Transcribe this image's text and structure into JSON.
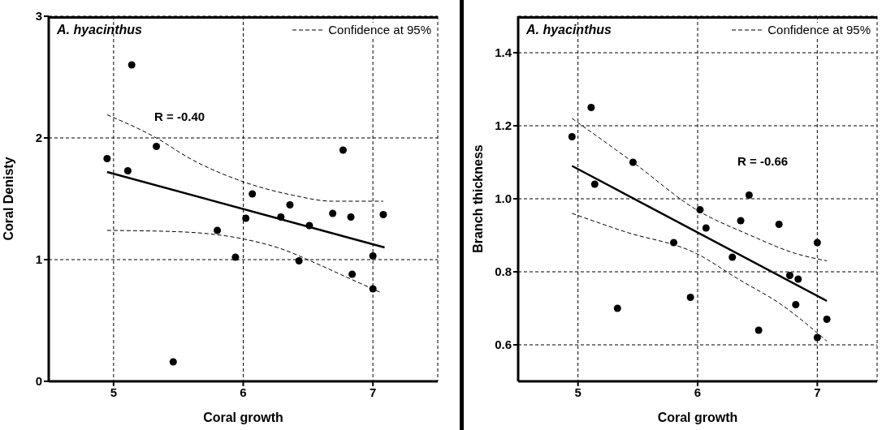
{
  "chart_data": [
    {
      "type": "scatter",
      "title": "A. hyacinthus",
      "xlabel": "Coral growth",
      "ylabel": "Coral Denisty",
      "xlim": [
        4.5,
        7.5
      ],
      "xticks": [
        5,
        6,
        7
      ],
      "ylim": [
        0,
        3
      ],
      "yticks": [
        0,
        1,
        2,
        3
      ],
      "grid": true,
      "legend": "top right",
      "annotations": [
        "R = -0.40"
      ],
      "series": [
        {
          "marker": "circle",
          "color": "#000000",
          "x": [
            4.95,
            5.11,
            5.14,
            5.33,
            5.46,
            5.8,
            5.94,
            6.02,
            6.07,
            6.29,
            6.36,
            6.43,
            6.51,
            6.69,
            6.77,
            6.83,
            6.84,
            7.0,
            7.0,
            7.08
          ],
          "values": [
            1.83,
            1.73,
            2.6,
            1.93,
            0.16,
            1.24,
            1.02,
            1.34,
            1.54,
            1.35,
            1.45,
            0.99,
            1.28,
            1.38,
            1.9,
            1.35,
            0.88,
            1.03,
            0.76,
            1.37
          ]
        },
        {
          "type": "line",
          "color": "#000000",
          "line_style": "solid",
          "x": [
            4.95,
            7.09
          ],
          "values": [
            1.72,
            1.1
          ]
        },
        {
          "type": "line",
          "name": "Confidence at 95%",
          "color": "#000000",
          "line_style": "dashed",
          "x": [
            4.95,
            5.33,
            5.59,
            6.0,
            6.38,
            6.69,
            7.08
          ],
          "values": [
            2.19,
            2.0,
            1.83,
            1.64,
            1.53,
            1.48,
            1.48
          ]
        },
        {
          "type": "line",
          "color": "#000000",
          "line_style": "dashed",
          "x": [
            4.95,
            5.48,
            6.0,
            6.29,
            6.56,
            6.83,
            7.06
          ],
          "values": [
            1.24,
            1.23,
            1.17,
            1.09,
            0.97,
            0.84,
            0.73
          ]
        }
      ]
    },
    {
      "type": "scatter",
      "title": "A. hyacinthus",
      "xlabel": "Coral growth",
      "ylabel": "Branch thickness",
      "xlim": [
        4.5,
        7.5
      ],
      "xticks": [
        5,
        6,
        7
      ],
      "ylim": [
        0.5,
        1.5
      ],
      "yticks": [
        {
          "value": 0.6,
          "label": "0.6"
        },
        {
          "value": 0.8,
          "label": "0.8"
        },
        {
          "value": 1,
          "label": "1.0"
        },
        {
          "value": 1.2,
          "label": "1.2"
        },
        {
          "value": 1.4,
          "label": "1.4"
        }
      ],
      "grid": true,
      "legend": "top right",
      "annotations": [
        "R = -0.66"
      ],
      "series": [
        {
          "marker": "circle",
          "color": "#000000",
          "x": [
            4.95,
            5.11,
            5.14,
            5.33,
            5.46,
            5.8,
            5.94,
            6.02,
            6.07,
            6.29,
            6.36,
            6.43,
            6.51,
            6.68,
            6.77,
            6.84,
            6.82,
            7.0,
            7.0,
            7.08
          ],
          "values": [
            1.17,
            1.25,
            1.04,
            0.7,
            1.1,
            0.88,
            0.73,
            0.97,
            0.92,
            0.84,
            0.94,
            1.01,
            0.64,
            0.93,
            0.79,
            0.78,
            0.71,
            0.88,
            0.62,
            0.67
          ]
        },
        {
          "type": "line",
          "color": "#000000",
          "line_style": "solid",
          "x": [
            4.95,
            7.08
          ],
          "values": [
            1.09,
            0.72
          ]
        },
        {
          "type": "line",
          "name": "Confidence at 95%",
          "color": "#000000",
          "line_style": "dashed",
          "x": [
            4.95,
            5.46,
            5.99,
            6.44,
            6.82,
            7.08
          ],
          "values": [
            1.22,
            1.1,
            0.97,
            0.9,
            0.85,
            0.83
          ]
        },
        {
          "type": "line",
          "color": "#000000",
          "line_style": "dashed",
          "x": [
            4.95,
            5.39,
            5.99,
            6.34,
            6.7,
            7.08
          ],
          "values": [
            0.96,
            0.91,
            0.85,
            0.78,
            0.71,
            0.61
          ]
        }
      ]
    }
  ]
}
